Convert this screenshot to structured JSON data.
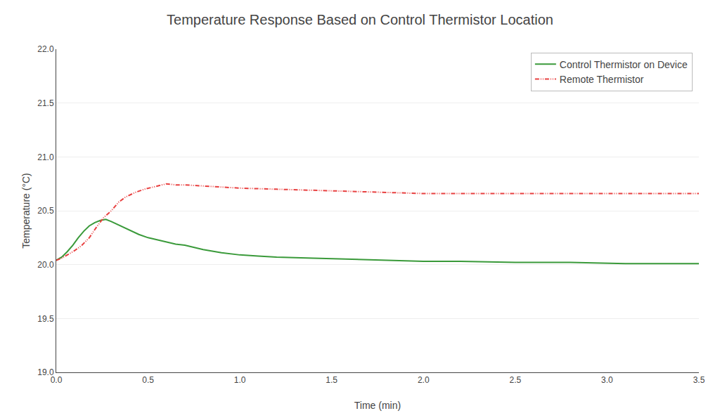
{
  "chart_data": {
    "type": "line",
    "title": "Temperature Response Based on Control Thermistor Location",
    "xlabel": "Time (min)",
    "ylabel": "Temperature (°C)",
    "xlim": [
      0.0,
      3.5
    ],
    "ylim": [
      19.0,
      22.0
    ],
    "xticks": [
      {
        "value": 0.0,
        "label": "0.0"
      },
      0.5,
      {
        "value": 1.0,
        "label": "1.0"
      },
      1.5,
      {
        "value": 2.0,
        "label": "2.0"
      },
      2.5,
      {
        "value": 3.0,
        "label": "3.0"
      },
      3.5
    ],
    "yticks": [
      {
        "value": 19.0,
        "label": "19.0"
      },
      19.5,
      {
        "value": 20.0,
        "label": "20.0"
      },
      20.5,
      {
        "value": 21.0,
        "label": "21.0"
      },
      21.5,
      {
        "value": 22.0,
        "label": "22.0"
      }
    ],
    "grid": "y",
    "legend": "upper right",
    "series": [
      {
        "name": "Control Thermistor on Device",
        "color": "#3a9a3a",
        "line_style": "solid",
        "x": [
          0.0,
          0.03,
          0.06,
          0.09,
          0.12,
          0.15,
          0.18,
          0.21,
          0.24,
          0.27,
          0.3,
          0.35,
          0.4,
          0.45,
          0.5,
          0.55,
          0.6,
          0.65,
          0.7,
          0.8,
          0.9,
          1.0,
          1.1,
          1.2,
          1.4,
          1.6,
          1.8,
          2.0,
          2.2,
          2.5,
          2.8,
          3.1,
          3.5
        ],
        "values": [
          20.04,
          20.07,
          20.12,
          20.18,
          20.25,
          20.31,
          20.36,
          20.39,
          20.41,
          20.42,
          20.4,
          20.36,
          20.32,
          20.28,
          20.25,
          20.23,
          20.21,
          20.19,
          20.18,
          20.14,
          20.11,
          20.09,
          20.08,
          20.07,
          20.06,
          20.05,
          20.04,
          20.03,
          20.03,
          20.02,
          20.02,
          20.01,
          20.01
        ]
      },
      {
        "name": "Remote Thermistor",
        "color": "#e84040",
        "line_style": "dashdotdot",
        "x": [
          0.0,
          0.03,
          0.06,
          0.1,
          0.14,
          0.18,
          0.22,
          0.26,
          0.3,
          0.34,
          0.38,
          0.43,
          0.48,
          0.55,
          0.6,
          0.65,
          0.7,
          0.8,
          0.9,
          1.0,
          1.2,
          1.4,
          1.6,
          1.8,
          2.0,
          2.2,
          2.5,
          2.8,
          3.1,
          3.5
        ],
        "values": [
          20.04,
          20.06,
          20.09,
          20.13,
          20.18,
          20.25,
          20.35,
          20.44,
          20.5,
          20.58,
          20.63,
          20.67,
          20.7,
          20.73,
          20.75,
          20.74,
          20.74,
          20.73,
          20.72,
          20.71,
          20.7,
          20.69,
          20.68,
          20.67,
          20.66,
          20.66,
          20.66,
          20.66,
          20.66,
          20.66
        ]
      }
    ]
  }
}
